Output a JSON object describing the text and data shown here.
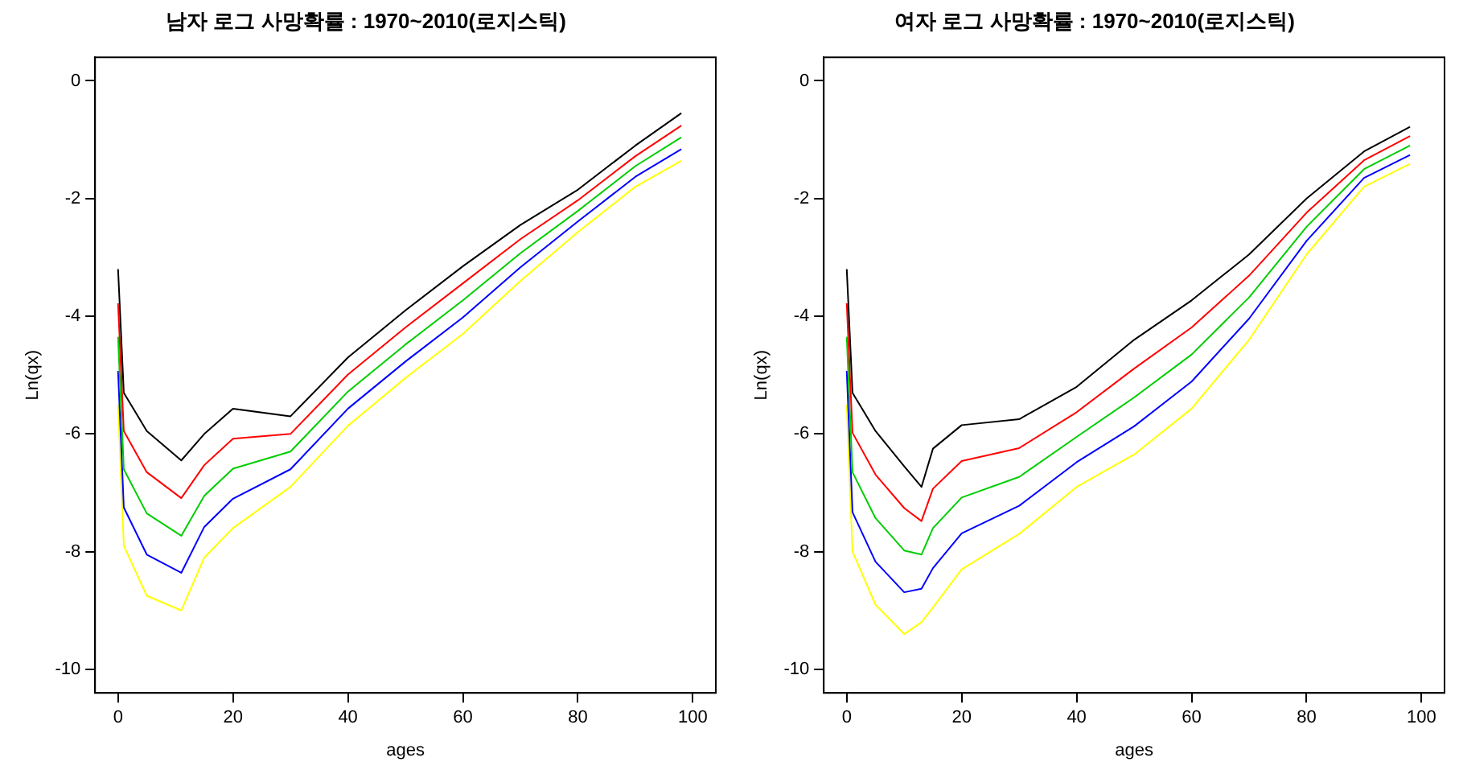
{
  "chart_data": [
    {
      "type": "line",
      "title": "남자 로그 사망확률 : 1970~2010(로지스틱)",
      "xlabel": "ages",
      "ylabel": "Ln(qx)",
      "xlim": [
        -4,
        104
      ],
      "xticks": [
        0,
        20,
        40,
        60,
        80,
        100
      ],
      "ylim": [
        -10.4,
        0.4
      ],
      "yticks": [
        -10,
        -8,
        -6,
        -4,
        -2,
        0
      ],
      "grid": false,
      "legend": false,
      "marker": "none",
      "line_style": "solid",
      "x": [
        0,
        1,
        5,
        11,
        15,
        20,
        30,
        40,
        50,
        60,
        70,
        80,
        90,
        98
      ],
      "series": [
        {
          "color": "#000000",
          "values": [
            -3.2,
            -5.3,
            -5.95,
            -6.45,
            -6.0,
            -5.57,
            -5.7,
            -4.7,
            -3.9,
            -3.15,
            -2.45,
            -1.85,
            -1.1,
            -0.55
          ]
        },
        {
          "color": "#ff0000",
          "values": [
            -3.78,
            -5.95,
            -6.65,
            -7.09,
            -6.53,
            -6.08,
            -6.0,
            -4.99,
            -4.19,
            -3.44,
            -2.69,
            -2.03,
            -1.28,
            -0.76
          ]
        },
        {
          "color": "#00cd00",
          "values": [
            -4.35,
            -6.6,
            -7.35,
            -7.73,
            -7.05,
            -6.59,
            -6.3,
            -5.28,
            -4.48,
            -3.73,
            -2.93,
            -2.21,
            -1.45,
            -0.96
          ]
        },
        {
          "color": "#0000ff",
          "values": [
            -4.93,
            -7.25,
            -8.05,
            -8.36,
            -7.58,
            -7.1,
            -6.6,
            -5.57,
            -4.77,
            -4.02,
            -3.17,
            -2.39,
            -1.63,
            -1.16
          ]
        },
        {
          "color": "#ffff00",
          "values": [
            -5.5,
            -7.9,
            -8.75,
            -9.0,
            -8.1,
            -7.6,
            -6.9,
            -5.86,
            -5.05,
            -4.3,
            -3.4,
            -2.57,
            -1.8,
            -1.36
          ]
        }
      ]
    },
    {
      "type": "line",
      "title": "여자 로그 사망확률 : 1970~2010(로지스틱)",
      "xlabel": "ages",
      "ylabel": "Ln(qx)",
      "xlim": [
        -4,
        104
      ],
      "xticks": [
        0,
        20,
        40,
        60,
        80,
        100
      ],
      "ylim": [
        -10.4,
        0.4
      ],
      "yticks": [
        -10,
        -8,
        -6,
        -4,
        -2,
        0
      ],
      "grid": false,
      "legend": false,
      "marker": "none",
      "line_style": "solid",
      "x": [
        0,
        1,
        5,
        10,
        13,
        15,
        20,
        30,
        40,
        50,
        60,
        70,
        80,
        90,
        98
      ],
      "series": [
        {
          "color": "#000000",
          "values": [
            -3.2,
            -5.3,
            -5.95,
            -6.55,
            -6.9,
            -6.25,
            -5.85,
            -5.75,
            -5.2,
            -4.4,
            -3.73,
            -2.95,
            -2.0,
            -1.2,
            -0.78
          ]
        },
        {
          "color": "#ff0000",
          "values": [
            -3.78,
            -5.98,
            -6.69,
            -7.26,
            -7.48,
            -6.93,
            -6.46,
            -6.24,
            -5.63,
            -4.89,
            -4.19,
            -3.31,
            -2.24,
            -1.35,
            -0.94
          ]
        },
        {
          "color": "#00cd00",
          "values": [
            -4.35,
            -6.65,
            -7.43,
            -7.98,
            -8.05,
            -7.6,
            -7.08,
            -6.73,
            -6.05,
            -5.38,
            -4.65,
            -3.68,
            -2.48,
            -1.5,
            -1.1
          ]
        },
        {
          "color": "#0000ff",
          "values": [
            -4.93,
            -7.33,
            -8.17,
            -8.69,
            -8.63,
            -8.28,
            -7.69,
            -7.22,
            -6.48,
            -5.87,
            -5.11,
            -4.04,
            -2.72,
            -1.65,
            -1.26
          ]
        },
        {
          "color": "#ffff00",
          "values": [
            -5.5,
            -8.0,
            -8.9,
            -9.4,
            -9.2,
            -8.95,
            -8.3,
            -7.7,
            -6.9,
            -6.35,
            -5.57,
            -4.4,
            -2.95,
            -1.8,
            -1.41
          ]
        }
      ]
    }
  ]
}
